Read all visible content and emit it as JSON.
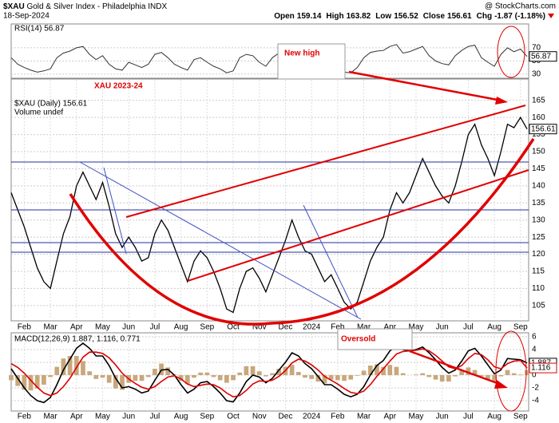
{
  "header": {
    "symbol": "$XAU",
    "name": "Gold & Silver Index - Philadelphia INDX",
    "date": "18-Sep-2024",
    "quote": [
      {
        "label": "Open",
        "value": "159.14"
      },
      {
        "label": "High",
        "value": "163.82"
      },
      {
        "label": "Low",
        "value": "156.52"
      },
      {
        "label": "Close",
        "value": "156.61"
      },
      {
        "label": "Chg",
        "value": "-1.87 (-1.18%)"
      }
    ],
    "watermark": "@ StockCharts.com"
  },
  "annotations": {
    "title": "XAU 2023-24",
    "new_high": "New high",
    "oversold": "Oversold"
  },
  "chart_data": [
    {
      "type": "line",
      "title": "RSI(14) 56.87",
      "color": "#333333",
      "values": [
        55,
        45,
        40,
        36,
        33,
        35,
        38,
        55,
        62,
        65,
        70,
        72,
        60,
        52,
        58,
        45,
        38,
        36,
        48,
        44,
        40,
        45,
        60,
        63,
        55,
        45,
        40,
        36,
        52,
        55,
        48,
        42,
        38,
        32,
        35,
        55,
        60,
        58,
        48,
        42,
        55,
        62,
        66,
        70,
        55,
        47,
        46,
        40,
        36,
        45,
        38,
        33,
        32,
        40,
        55,
        63,
        65,
        66,
        72,
        75,
        62,
        64,
        68,
        72,
        58,
        50,
        46,
        44,
        58,
        66,
        72,
        74,
        55,
        48,
        42,
        60,
        70,
        64,
        68,
        56.87
      ],
      "ylim": [
        25,
        105
      ],
      "yticks": [
        30,
        50,
        70
      ],
      "grid": true
    },
    {
      "type": "line",
      "title": "$XAU (Daily) 156.61",
      "subtitle": "Volume undef",
      "color": "#000000",
      "categories": [
        null,
        null,
        "Feb",
        null,
        null,
        null,
        "Mar",
        null,
        null,
        null,
        "Apr",
        null,
        null,
        null,
        "May",
        null,
        null,
        null,
        "Jun",
        null,
        null,
        null,
        "Jul",
        null,
        null,
        null,
        "Aug",
        null,
        null,
        null,
        "Sep",
        null,
        null,
        null,
        "Oct",
        null,
        null,
        null,
        "Nov",
        null,
        null,
        null,
        "Dec",
        null,
        null,
        null,
        "2024",
        null,
        null,
        null,
        "Feb",
        null,
        null,
        null,
        "Mar",
        null,
        null,
        null,
        "Apr",
        null,
        null,
        null,
        "May",
        null,
        null,
        null,
        "Jun",
        null,
        null,
        null,
        "Jul",
        null,
        null,
        null,
        "Aug",
        null,
        null,
        null,
        "Sep",
        null
      ],
      "values": [
        138,
        133,
        128,
        122,
        116,
        112,
        110,
        118,
        126,
        131,
        140,
        144,
        140,
        136,
        141,
        134,
        126,
        122,
        125,
        122,
        118,
        119,
        126,
        130,
        127,
        122,
        117,
        112,
        118,
        121,
        119,
        115,
        110,
        104,
        103,
        110,
        115,
        116,
        113,
        109,
        114,
        119,
        124,
        130,
        125,
        121,
        120,
        116,
        112,
        114,
        110,
        106,
        104,
        106,
        112,
        118,
        122,
        125,
        133,
        138,
        135,
        138,
        143,
        148,
        144,
        140,
        137,
        135,
        140,
        147,
        155,
        158,
        152,
        148,
        143,
        150,
        158,
        157,
        160,
        156.61
      ],
      "ylim": [
        101,
        171
      ],
      "yticks": [
        105,
        110,
        115,
        120,
        125,
        130,
        135,
        140,
        145,
        150,
        155,
        160,
        165
      ],
      "grid": true
    },
    {
      "type": "macd",
      "title": "MACD(12,26,9) 1.887, 1.116, 0.771",
      "categories": [
        null,
        null,
        "Feb",
        null,
        null,
        null,
        "Mar",
        null,
        null,
        null,
        "Apr",
        null,
        null,
        null,
        "May",
        null,
        null,
        null,
        "Jun",
        null,
        null,
        null,
        "Jul",
        null,
        null,
        null,
        "Aug",
        null,
        null,
        null,
        "Sep",
        null,
        null,
        null,
        "Oct",
        null,
        null,
        null,
        "Nov",
        null,
        null,
        null,
        "Dec",
        null,
        null,
        null,
        "2024",
        null,
        null,
        null,
        "Feb",
        null,
        null,
        null,
        "Mar",
        null,
        null,
        null,
        "Apr",
        null,
        null,
        null,
        "May",
        null,
        null,
        null,
        "Jun",
        null,
        null,
        null,
        "Jul",
        null,
        null,
        null,
        "Aug",
        null,
        null,
        null,
        "Sep",
        null
      ],
      "series": [
        {
          "color": "#000000",
          "values": [
            1.0,
            -0.5,
            -2.0,
            -3.2,
            -4.0,
            -4.3,
            -3.5,
            -1.5,
            0.8,
            2.5,
            4.2,
            5.0,
            4.2,
            3.0,
            3.0,
            1.5,
            -0.5,
            -2.0,
            -1.8,
            -2.2,
            -2.8,
            -2.5,
            -0.8,
            0.8,
            0.9,
            0.0,
            -1.5,
            -2.8,
            -2.2,
            -1.2,
            -1.0,
            -1.8,
            -2.8,
            -4.0,
            -4.2,
            -2.8,
            -1.0,
            0.0,
            -0.3,
            -1.2,
            -0.5,
            0.8,
            2.0,
            3.5,
            3.0,
            1.8,
            1.0,
            -0.2,
            -1.5,
            -1.5,
            -2.2,
            -3.0,
            -3.4,
            -3.0,
            -1.8,
            0.0,
            1.5,
            2.3,
            3.8,
            4.6,
            4.0,
            3.8,
            4.0,
            4.4,
            3.5,
            2.4,
            1.2,
            0.3,
            0.8,
            2.2,
            3.8,
            4.2,
            3.0,
            1.6,
            0.2,
            0.8,
            2.6,
            2.5,
            2.4,
            1.887
          ]
        },
        {
          "color": "#dd0000",
          "values": [
            1.8,
            1.2,
            0.3,
            -0.8,
            -1.9,
            -2.8,
            -3.2,
            -2.8,
            -1.8,
            -0.5,
            1.2,
            2.8,
            3.6,
            3.6,
            3.4,
            2.7,
            1.6,
            0.3,
            -0.6,
            -1.3,
            -1.9,
            -2.2,
            -1.8,
            -1.0,
            -0.3,
            -0.1,
            -0.6,
            -1.4,
            -1.8,
            -1.6,
            -1.4,
            -1.5,
            -2.0,
            -2.8,
            -3.4,
            -3.2,
            -2.4,
            -1.4,
            -0.9,
            -1.0,
            -0.8,
            -0.2,
            0.7,
            1.9,
            2.5,
            2.2,
            1.6,
            0.8,
            -0.2,
            -0.8,
            -1.4,
            -2.1,
            -2.7,
            -2.9,
            -2.5,
            -1.5,
            -0.2,
            1.0,
            2.2,
            3.3,
            3.7,
            3.8,
            3.9,
            4.1,
            3.8,
            3.1,
            2.2,
            1.3,
            1.0,
            1.5,
            2.6,
            3.4,
            3.2,
            2.4,
            1.3,
            1.0,
            1.8,
            2.2,
            2.3,
            1.116
          ]
        },
        {
          "type": "bar",
          "color": "#c9a77c",
          "values": [
            -0.8,
            -1.7,
            -2.3,
            -2.4,
            -2.1,
            -1.5,
            -0.3,
            1.3,
            2.6,
            3.0,
            3.0,
            2.2,
            0.6,
            -0.6,
            -0.4,
            -1.2,
            -2.1,
            -2.3,
            -1.2,
            -0.9,
            -0.9,
            -0.3,
            1.0,
            1.8,
            1.2,
            0.1,
            -0.9,
            -1.4,
            -0.4,
            0.4,
            0.4,
            -0.3,
            -0.8,
            -1.2,
            -0.8,
            0.4,
            1.4,
            1.4,
            0.6,
            -0.2,
            0.3,
            1.0,
            1.3,
            1.6,
            0.5,
            -0.4,
            -0.6,
            -1.0,
            -1.3,
            -0.7,
            -0.8,
            -0.9,
            -0.7,
            -0.1,
            0.7,
            1.5,
            1.7,
            1.3,
            1.6,
            1.3,
            0.3,
            0.0,
            0.1,
            0.3,
            -0.3,
            -0.7,
            -1.0,
            -1.0,
            -0.2,
            0.7,
            1.2,
            0.8,
            -0.2,
            -0.8,
            -1.1,
            -0.2,
            0.8,
            0.3,
            0.1,
            0.771
          ]
        }
      ],
      "ylim": [
        -5.5,
        6.5
      ],
      "yticks": [
        -4,
        -2,
        0,
        2,
        4,
        6
      ],
      "grid": true
    }
  ]
}
